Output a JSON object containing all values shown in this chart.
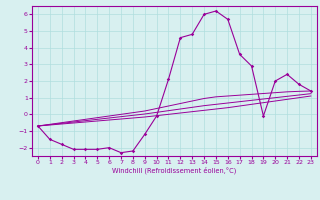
{
  "hours": [
    0,
    1,
    2,
    3,
    4,
    5,
    6,
    7,
    8,
    9,
    10,
    11,
    12,
    13,
    14,
    15,
    16,
    17,
    18,
    19,
    20,
    21,
    22,
    23
  ],
  "windchill": [
    -0.7,
    -1.5,
    -1.8,
    -2.1,
    -2.1,
    -2.1,
    -2.0,
    -2.3,
    -2.2,
    -1.2,
    -0.1,
    2.1,
    4.6,
    4.8,
    6.0,
    6.2,
    5.7,
    3.6,
    2.9,
    -0.1,
    2.0,
    2.4,
    1.8,
    1.4
  ],
  "line1": [
    -0.7,
    -0.6,
    -0.5,
    -0.4,
    -0.3,
    -0.2,
    -0.1,
    0.0,
    0.1,
    0.2,
    0.35,
    0.5,
    0.65,
    0.8,
    0.95,
    1.05,
    1.1,
    1.15,
    1.2,
    1.25,
    1.3,
    1.35,
    1.38,
    1.4
  ],
  "line2": [
    -0.7,
    -0.62,
    -0.54,
    -0.46,
    -0.38,
    -0.3,
    -0.22,
    -0.14,
    -0.06,
    0.02,
    0.12,
    0.22,
    0.32,
    0.42,
    0.52,
    0.6,
    0.68,
    0.76,
    0.84,
    0.92,
    1.0,
    1.08,
    1.16,
    1.24
  ],
  "line3": [
    -0.7,
    -0.64,
    -0.58,
    -0.52,
    -0.46,
    -0.4,
    -0.34,
    -0.28,
    -0.22,
    -0.16,
    -0.08,
    0.0,
    0.08,
    0.16,
    0.24,
    0.32,
    0.4,
    0.5,
    0.6,
    0.7,
    0.8,
    0.9,
    1.0,
    1.1
  ],
  "color": "#990099",
  "bg_color": "#d8f0f0",
  "grid_color": "#b0dede",
  "xlabel": "Windchill (Refroidissement éolien,°C)",
  "ylim": [
    -2.5,
    6.5
  ],
  "xlim": [
    -0.5,
    23.5
  ],
  "yticks": [
    -2,
    -1,
    0,
    1,
    2,
    3,
    4,
    5,
    6
  ],
  "xticks": [
    0,
    1,
    2,
    3,
    4,
    5,
    6,
    7,
    8,
    9,
    10,
    11,
    12,
    13,
    14,
    15,
    16,
    17,
    18,
    19,
    20,
    21,
    22,
    23
  ]
}
